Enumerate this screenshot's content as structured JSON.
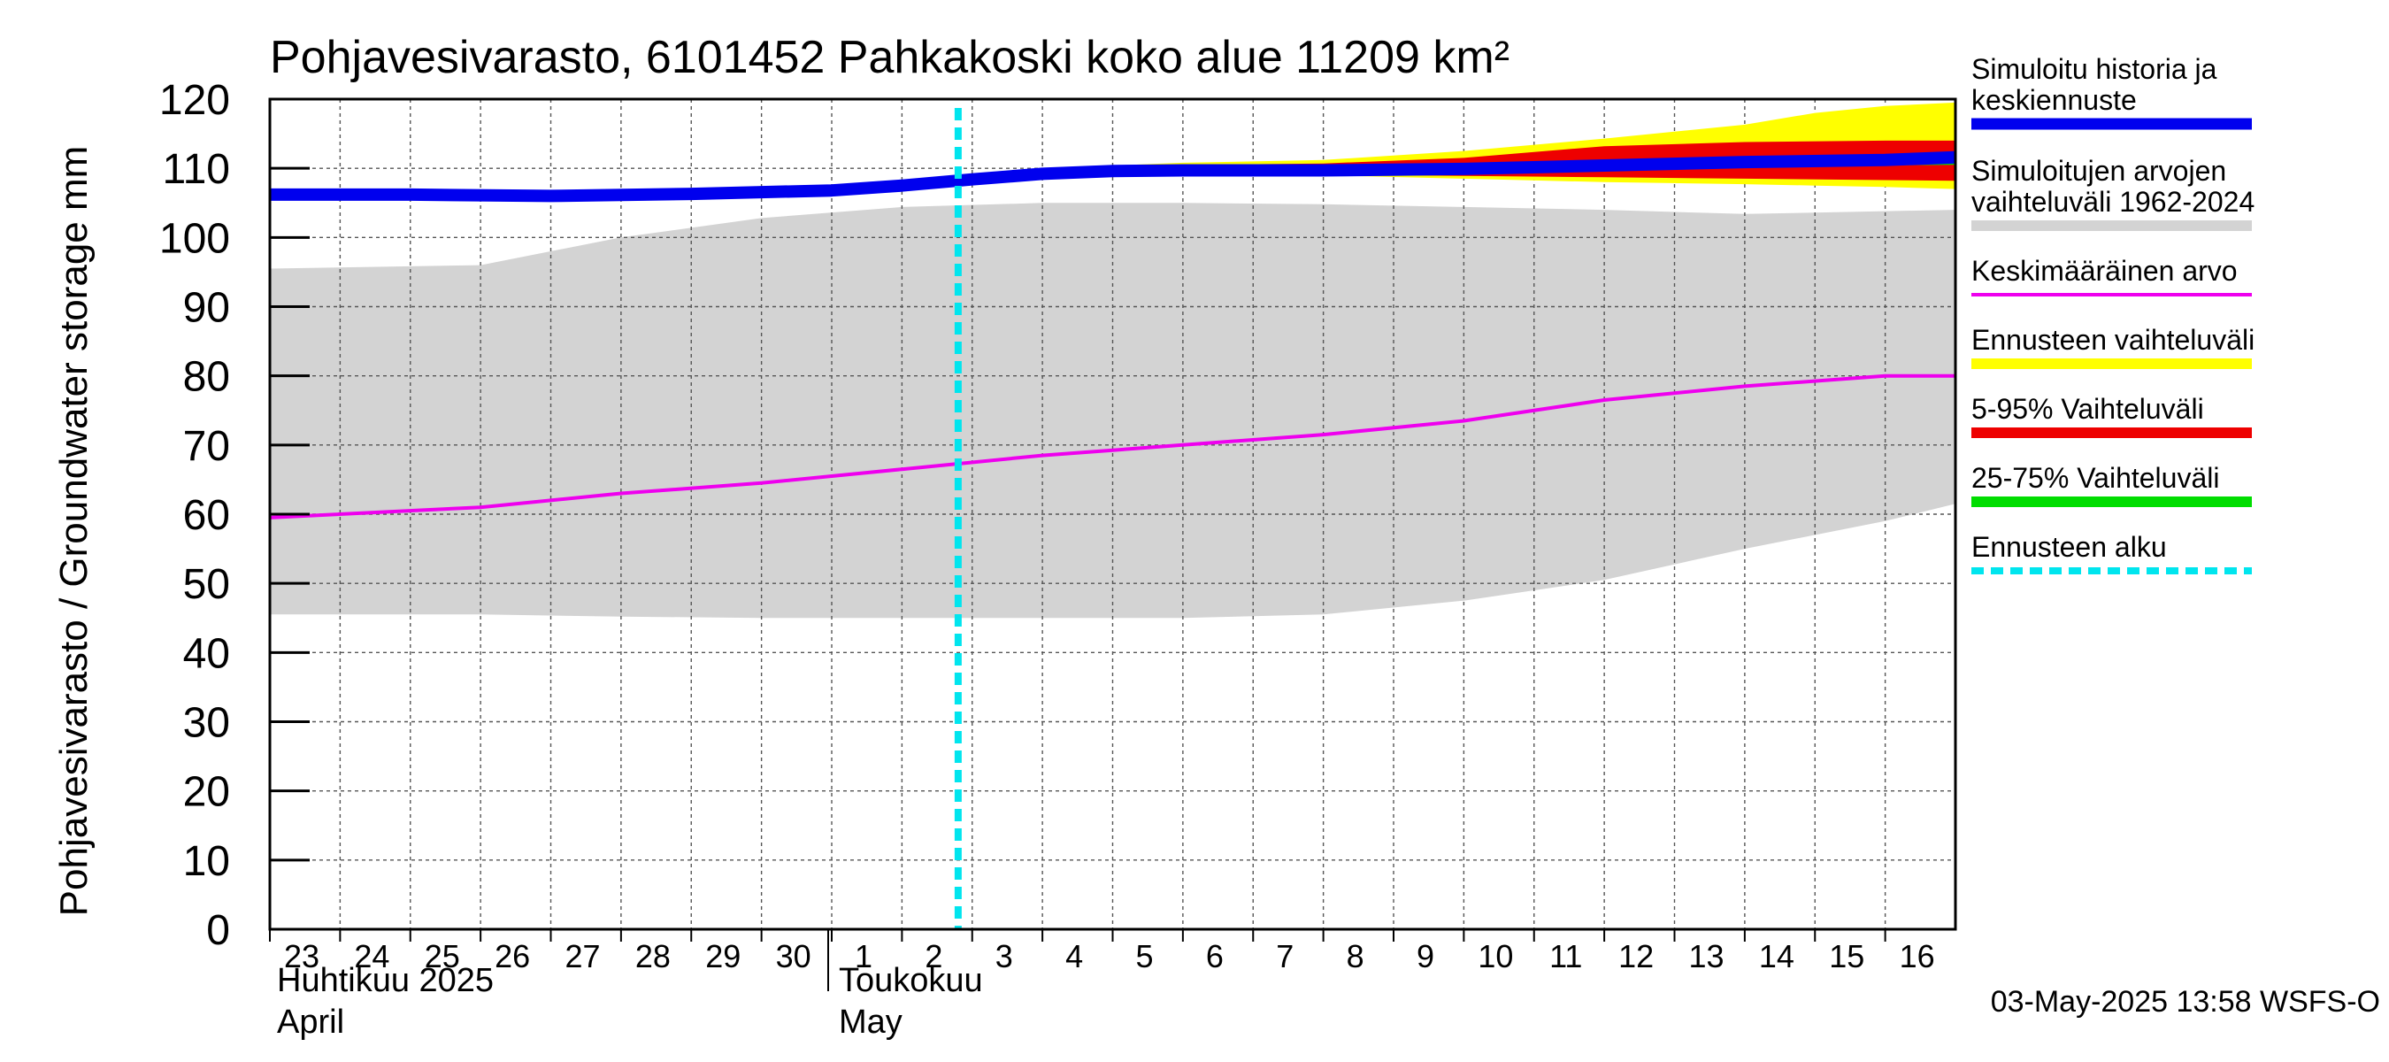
{
  "chart_data": {
    "type": "area",
    "title": "Pohjavesivarasto, 6101452 Pahkakoski koko alue 11209 km²",
    "ylabel": "Pohjavesivarasto / Groundwater storage   mm",
    "ylim": [
      0,
      120
    ],
    "yticks": [
      0,
      10,
      20,
      30,
      40,
      50,
      60,
      70,
      80,
      90,
      100,
      110,
      120
    ],
    "xlim": [
      "2025-04-23",
      "2025-05-17"
    ],
    "day_labels": [
      "23",
      "24",
      "25",
      "26",
      "27",
      "28",
      "29",
      "30",
      "1",
      "2",
      "3",
      "4",
      "5",
      "6",
      "7",
      "8",
      "9",
      "10",
      "11",
      "12",
      "13",
      "14",
      "15",
      "16"
    ],
    "month_labels": [
      {
        "fi": "Huhtikuu  2025",
        "en": "April",
        "start": "2025-04-23"
      },
      {
        "fi": "Toukokuu",
        "en": "May",
        "start": "2025-05-01"
      }
    ],
    "grid": true,
    "legend_position": "right",
    "forecast_start": "2025-05-03",
    "colors": {
      "history": "#0000ee",
      "range": "#d3d3d3",
      "mean": "#ee00ee",
      "forecast_range": "#ffff00",
      "p5_95": "#ee0000",
      "p25_75": "#00dd00",
      "forecast_start": "#00e5ee"
    },
    "legend": [
      {
        "key": "history",
        "lines": [
          "Simuloitu historia ja",
          "keskiennuste"
        ]
      },
      {
        "key": "range",
        "lines": [
          "Simuloitujen arvojen",
          "vaihteluväli 1962-2024"
        ]
      },
      {
        "key": "mean",
        "lines": [
          "Keskimääräinen arvo"
        ]
      },
      {
        "key": "forecast_range",
        "lines": [
          "Ennusteen vaihteluväli"
        ]
      },
      {
        "key": "p5_95",
        "lines": [
          "5-95% Vaihteluväli"
        ]
      },
      {
        "key": "p25_75",
        "lines": [
          "25-75% Vaihteluväli"
        ]
      },
      {
        "key": "forecast_start",
        "lines": [
          "Ennusteen alku"
        ]
      }
    ],
    "series": {
      "range_band": {
        "x": [
          "2025-04-23",
          "2025-04-26",
          "2025-04-28",
          "2025-04-30",
          "2025-05-02",
          "2025-05-04",
          "2025-05-06",
          "2025-05-08",
          "2025-05-10",
          "2025-05-12",
          "2025-05-14",
          "2025-05-16",
          "2025-05-17"
        ],
        "upper": [
          95.5,
          96,
          100,
          102.8,
          104.4,
          105,
          105,
          104.8,
          104.4,
          104,
          103.4,
          103.8,
          104
        ],
        "lower": [
          45.5,
          45.5,
          45.2,
          45,
          45,
          45,
          45,
          45.5,
          47.5,
          50.5,
          55,
          59,
          61.5
        ]
      },
      "mean": {
        "x": [
          "2025-04-23",
          "2025-04-26",
          "2025-04-28",
          "2025-04-30",
          "2025-05-02",
          "2025-05-04",
          "2025-05-06",
          "2025-05-08",
          "2025-05-10",
          "2025-05-12",
          "2025-05-14",
          "2025-05-16",
          "2025-05-17"
        ],
        "values": [
          59.5,
          61,
          63,
          64.5,
          66.5,
          68.5,
          70,
          71.5,
          73.5,
          76.5,
          78.5,
          80,
          80
        ]
      },
      "history": {
        "x": [
          "2025-04-23",
          "2025-04-25",
          "2025-04-27",
          "2025-04-29",
          "2025-05-01",
          "2025-05-02",
          "2025-05-03",
          "2025-05-04",
          "2025-05-05",
          "2025-05-06",
          "2025-05-08",
          "2025-05-10",
          "2025-05-12",
          "2025-05-14",
          "2025-05-16",
          "2025-05-17"
        ],
        "values": [
          106.2,
          106.2,
          106,
          106.3,
          106.8,
          107.5,
          108.4,
          109.2,
          109.6,
          109.7,
          109.7,
          109.9,
          110.4,
          110.9,
          111.2,
          111.6
        ]
      },
      "forecast_band": {
        "x": [
          "2025-05-03",
          "2025-05-04",
          "2025-05-06",
          "2025-05-08",
          "2025-05-10",
          "2025-05-12",
          "2025-05-14",
          "2025-05-15",
          "2025-05-16",
          "2025-05-17"
        ],
        "upper": [
          108.6,
          110,
          110.8,
          111.2,
          112.5,
          114.3,
          116.3,
          118,
          119,
          119.5
        ],
        "lower": [
          108.3,
          109,
          109.4,
          109,
          108.5,
          108,
          107.7,
          107.5,
          107.3,
          107
        ]
      },
      "p5_95_band": {
        "x": [
          "2025-05-03",
          "2025-05-04",
          "2025-05-06",
          "2025-05-08",
          "2025-05-10",
          "2025-05-12",
          "2025-05-14",
          "2025-05-16",
          "2025-05-17"
        ],
        "upper": [
          108.6,
          109.9,
          110.5,
          110.7,
          111.5,
          113.2,
          113.8,
          114,
          114
        ],
        "lower": [
          108.3,
          109.1,
          109.4,
          109.1,
          108.9,
          108.7,
          108.5,
          108.3,
          108.2
        ]
      },
      "p25_75_band": {
        "x": [
          "2025-05-03",
          "2025-05-06",
          "2025-05-10",
          "2025-05-14",
          "2025-05-17"
        ],
        "upper": [
          108.5,
          109.8,
          110.3,
          111.2,
          111.8
        ],
        "lower": [
          108.4,
          109.6,
          109.6,
          110.3,
          110.5
        ]
      }
    }
  },
  "timestamp": "03-May-2025 13:58 WSFS-O"
}
